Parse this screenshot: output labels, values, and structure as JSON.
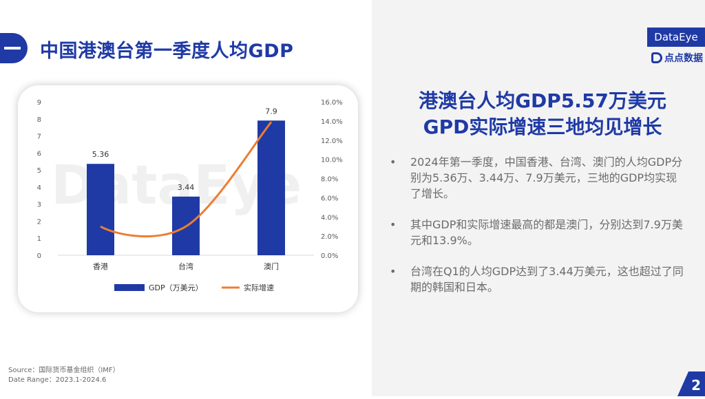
{
  "header": {
    "title": "中国港澳台第一季度人均GDP"
  },
  "brand": {
    "name": "DataEye",
    "sub": "点点数据"
  },
  "watermark": "DataEye",
  "headline": {
    "line1": "港澳台人均GDP5.57万美元",
    "line2": "GPD实际增速三地均见增长"
  },
  "bullets": [
    "2024年第一季度，中国香港、台湾、澳门的人均GDP分别为5.36万、3.44万、7.9万美元，三地的GDP均实现了增长。",
    "其中GDP和实际增速最高的都是澳门，分别达到7.9万美元和13.9%。",
    "台湾在Q1的人均GDP达到了3.44万美元，这也超过了同期的韩国和日本。"
  ],
  "bullet_symbol": "•",
  "source": {
    "line1": "Source：国际货币基金组织（IMF）",
    "line2": "Date Range：2023.1-2024.6"
  },
  "page_number": "2",
  "colors": {
    "accent": "#1f3aa5",
    "bar": "#1f3aa5",
    "line": "#ed7d31"
  },
  "chart_data": {
    "type": "bar",
    "categories": [
      "香港",
      "台湾",
      "澳门"
    ],
    "series": [
      {
        "name": "GDP（万美元）",
        "type": "bar",
        "axis": "left",
        "values": [
          5.36,
          3.44,
          7.9
        ],
        "data_labels": [
          "5.36",
          "3.44",
          "7.9"
        ]
      },
      {
        "name": "实际增速",
        "type": "line",
        "axis": "right",
        "values": [
          3.0,
          3.0,
          13.9
        ]
      }
    ],
    "y_left": {
      "range": [
        0,
        9
      ],
      "ticks": [
        "0",
        "1",
        "2",
        "3",
        "4",
        "5",
        "6",
        "7",
        "8",
        "9"
      ]
    },
    "y_right": {
      "range": [
        0,
        16
      ],
      "ticks": [
        "0.0%",
        "2.0%",
        "4.0%",
        "6.0%",
        "8.0%",
        "10.0%",
        "12.0%",
        "14.0%",
        "16.0%"
      ]
    },
    "grid": false,
    "legend": "bottom"
  }
}
